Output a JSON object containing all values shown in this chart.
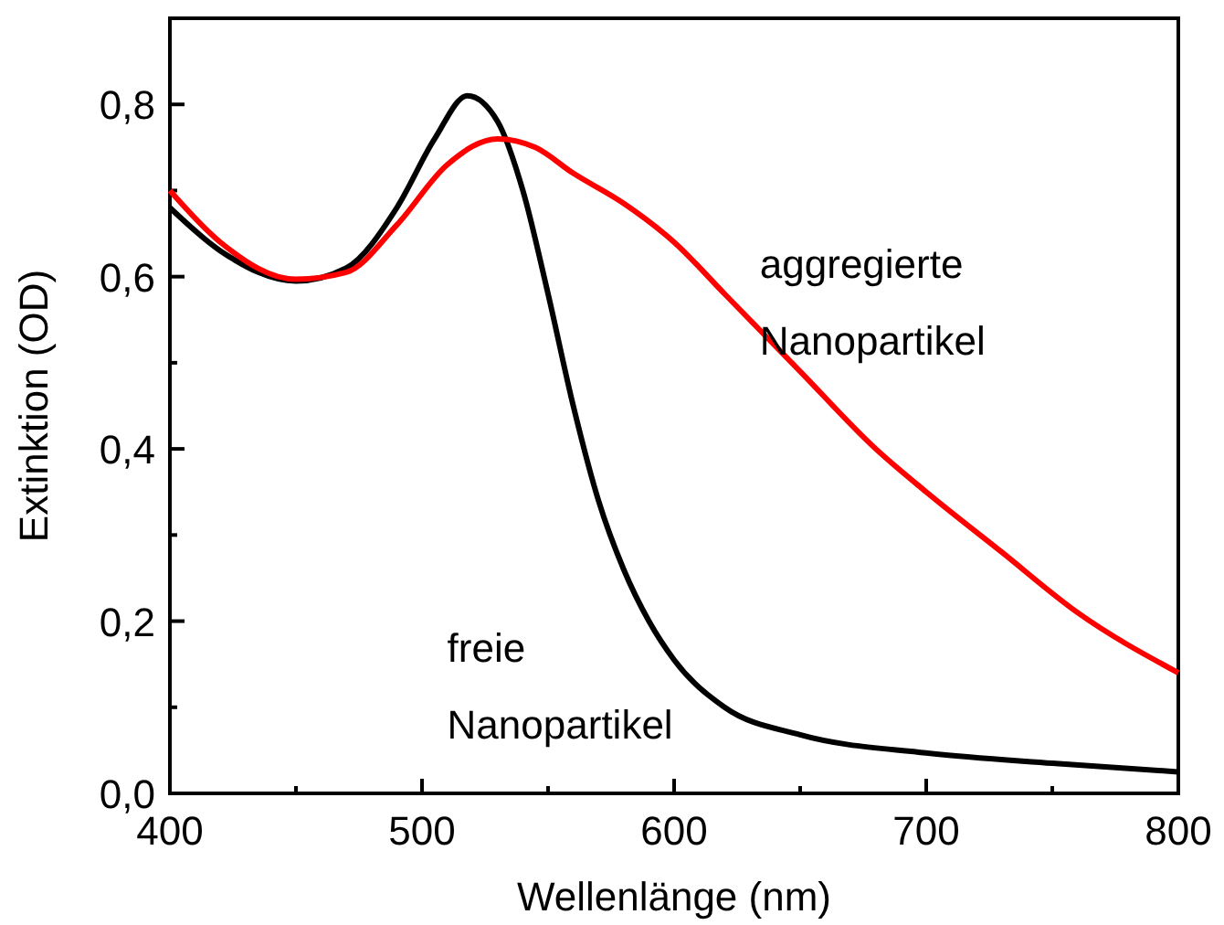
{
  "chart_data": {
    "type": "line",
    "xlabel": "Wellenlänge (nm)",
    "ylabel": "Extinktion (OD)",
    "xlim": [
      400,
      800
    ],
    "xticks": [
      400,
      500,
      600,
      700,
      800
    ],
    "ylim": [
      0,
      0.9
    ],
    "yticks": [
      {
        "value": 0,
        "label": "0,0"
      },
      {
        "value": 0.2,
        "label": "0,2"
      },
      {
        "value": 0.4,
        "label": "0,4"
      },
      {
        "value": 0.6,
        "label": "0,6"
      },
      {
        "value": 0.8,
        "label": "0,8"
      }
    ],
    "grid": false,
    "line_style": "solid",
    "series": [
      {
        "name": "freie Nanopartikel",
        "color": "#000000",
        "x": [
          400,
          420,
          450,
          470,
          490,
          505,
          518,
          530,
          540,
          550,
          560,
          570,
          580,
          590,
          600,
          620,
          650,
          700,
          750,
          800
        ],
        "values": [
          0.68,
          0.63,
          0.595,
          0.61,
          0.68,
          0.76,
          0.81,
          0.78,
          0.7,
          0.58,
          0.45,
          0.34,
          0.26,
          0.2,
          0.155,
          0.1,
          0.068,
          0.047,
          0.035,
          0.025
        ]
      },
      {
        "name": "aggregierte Nanopartikel",
        "color": "#ff0000",
        "x": [
          400,
          420,
          450,
          470,
          490,
          510,
          530,
          545,
          560,
          580,
          600,
          620,
          650,
          680,
          700,
          730,
          760,
          800
        ],
        "values": [
          0.7,
          0.64,
          0.597,
          0.605,
          0.66,
          0.73,
          0.76,
          0.75,
          0.72,
          0.685,
          0.64,
          0.58,
          0.49,
          0.4,
          0.35,
          0.28,
          0.21,
          0.14
        ]
      }
    ]
  }
}
